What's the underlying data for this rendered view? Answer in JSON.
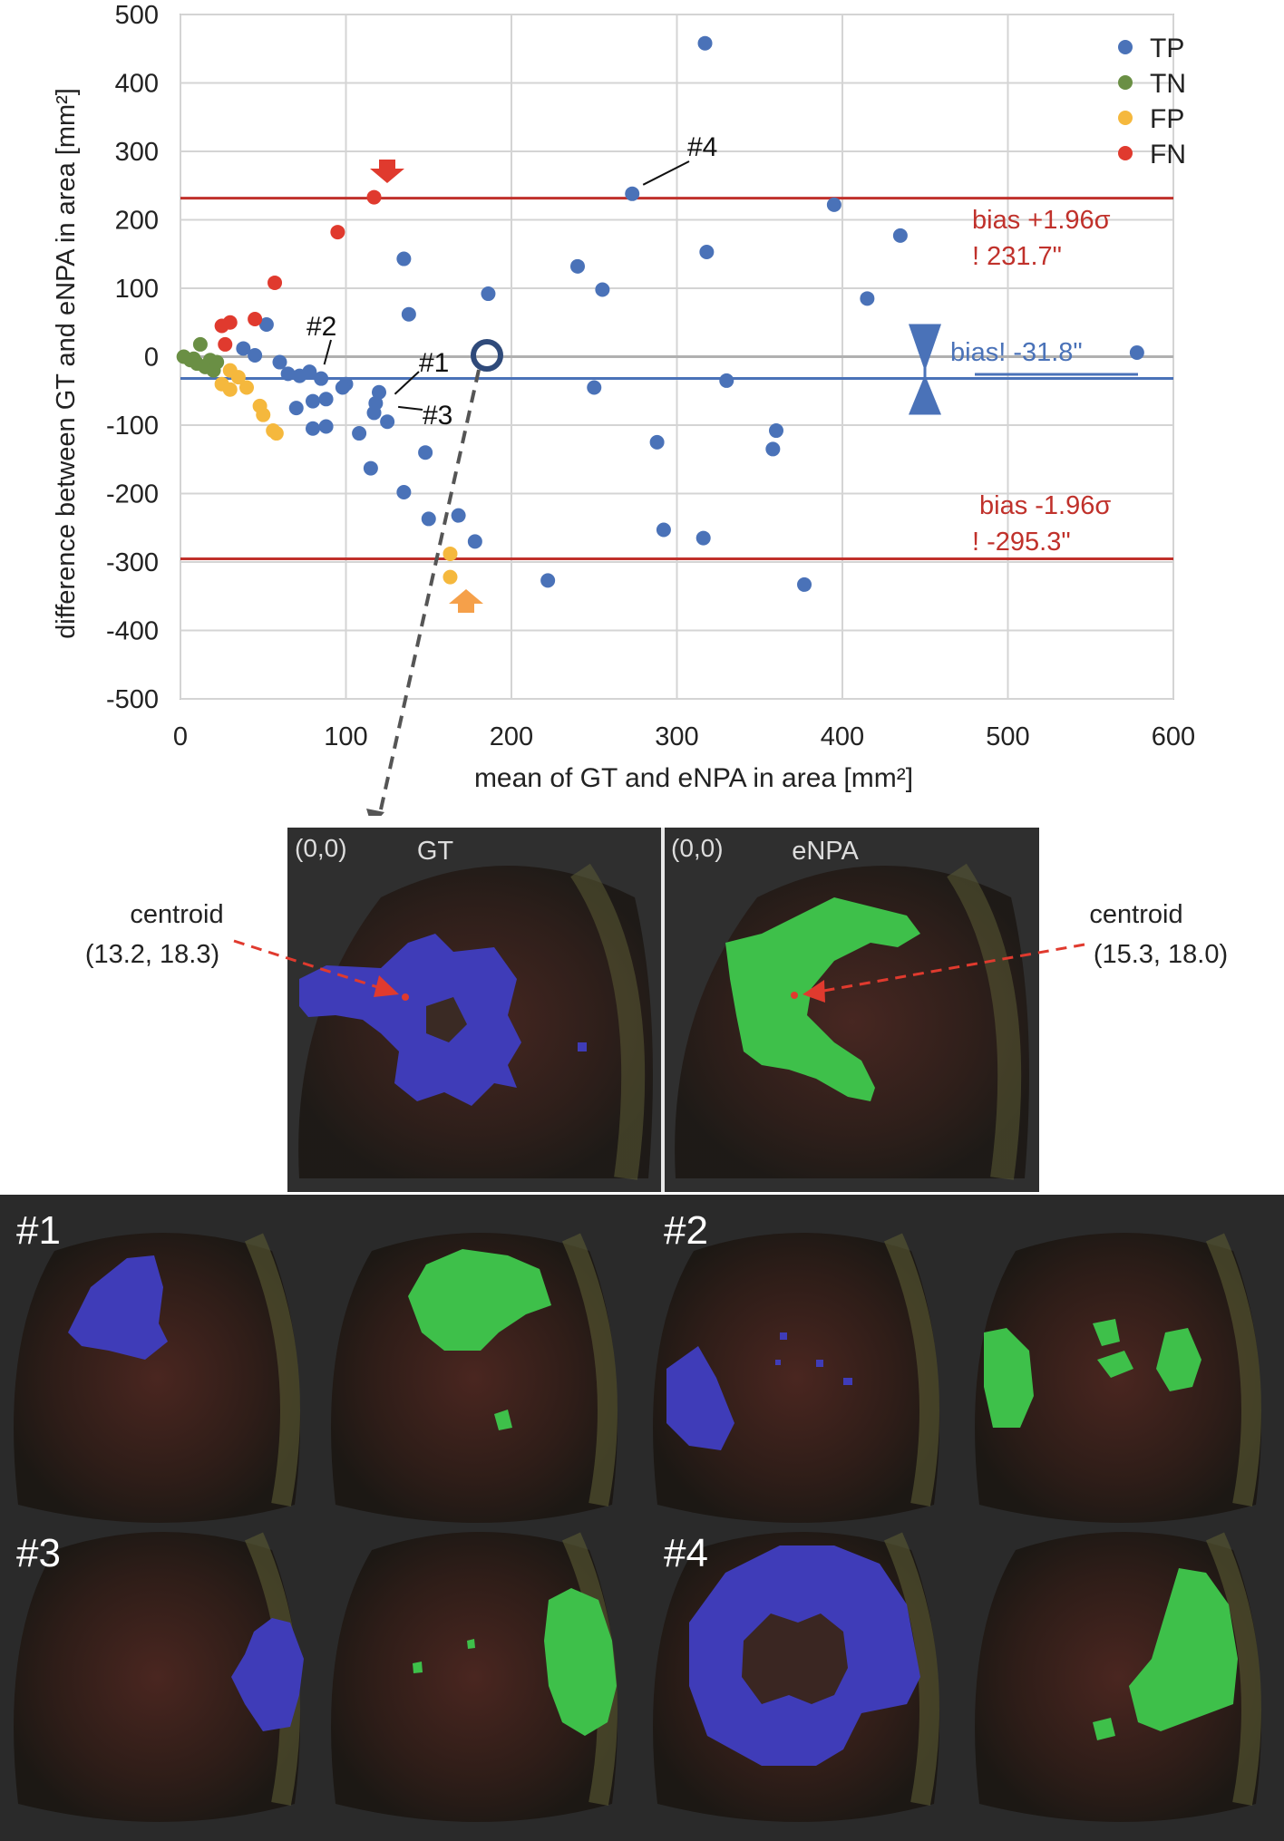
{
  "chart_data": {
    "type": "scatter",
    "title": "",
    "xlabel": "mean of GT and eNPA in area [mm²]",
    "ylabel": "difference between GT and eNPA in area [mm²]",
    "xlim": [
      0,
      600
    ],
    "ylim": [
      -500,
      500
    ],
    "xticks": [
      0,
      100,
      200,
      300,
      400,
      500,
      600
    ],
    "yticks": [
      500,
      400,
      300,
      200,
      100,
      0,
      -100,
      -200,
      -300,
      -400,
      -500
    ],
    "grid": true,
    "legend_position": "top-right",
    "series": [
      {
        "name": "TP",
        "color": "#4a72b8",
        "points": [
          [
            317,
            458
          ],
          [
            273,
            238
          ],
          [
            395,
            222
          ],
          [
            435,
            177
          ],
          [
            318,
            153
          ],
          [
            135,
            143
          ],
          [
            240,
            132
          ],
          [
            255,
            98
          ],
          [
            186,
            92
          ],
          [
            415,
            85
          ],
          [
            138,
            62
          ],
          [
            52,
            47
          ],
          [
            38,
            12
          ],
          [
            45,
            2
          ],
          [
            578,
            6
          ],
          [
            60,
            -8
          ],
          [
            65,
            -25
          ],
          [
            72,
            -28
          ],
          [
            78,
            -22
          ],
          [
            85,
            -32
          ],
          [
            100,
            -40
          ],
          [
            98,
            -45
          ],
          [
            120,
            -52
          ],
          [
            88,
            -62
          ],
          [
            80,
            -65
          ],
          [
            118,
            -68
          ],
          [
            70,
            -75
          ],
          [
            117,
            -82
          ],
          [
            125,
            -95
          ],
          [
            88,
            -102
          ],
          [
            80,
            -105
          ],
          [
            108,
            -112
          ],
          [
            250,
            -45
          ],
          [
            330,
            -35
          ],
          [
            360,
            -108
          ],
          [
            358,
            -135
          ],
          [
            288,
            -125
          ],
          [
            148,
            -140
          ],
          [
            115,
            -163
          ],
          [
            135,
            -198
          ],
          [
            150,
            -237
          ],
          [
            168,
            -232
          ],
          [
            178,
            -270
          ],
          [
            292,
            -253
          ],
          [
            316,
            -265
          ],
          [
            222,
            -327
          ],
          [
            377,
            -333
          ]
        ]
      },
      {
        "name": "TN",
        "color": "#6a8f44",
        "points": [
          [
            2,
            0
          ],
          [
            6,
            -5
          ],
          [
            10,
            -10
          ],
          [
            12,
            18
          ],
          [
            15,
            -15
          ],
          [
            18,
            -5
          ],
          [
            20,
            -20
          ],
          [
            22,
            -8
          ],
          [
            8,
            -3
          ]
        ]
      },
      {
        "name": "FP",
        "color": "#f5b83d",
        "points": [
          [
            25,
            -40
          ],
          [
            30,
            -48
          ],
          [
            35,
            -30
          ],
          [
            40,
            -45
          ],
          [
            30,
            -20
          ],
          [
            48,
            -72
          ],
          [
            50,
            -85
          ],
          [
            56,
            -108
          ],
          [
            58,
            -112
          ],
          [
            163,
            -288
          ],
          [
            163,
            -322
          ]
        ]
      },
      {
        "name": "FN",
        "color": "#e03a2e",
        "points": [
          [
            117,
            233
          ],
          [
            95,
            182
          ],
          [
            57,
            108
          ],
          [
            45,
            55
          ],
          [
            30,
            50
          ],
          [
            25,
            45
          ],
          [
            27,
            18
          ]
        ]
      }
    ],
    "reference_lines": [
      {
        "name": "upper-loa",
        "y": 231.7,
        "color": "#c0312b",
        "label": "bias +1.96σ",
        "value_text": "!  231.7\""
      },
      {
        "name": "lower-loa",
        "y": -295.3,
        "color": "#c0312b",
        "label": "bias -1.96σ",
        "value_text": "!  -295.3\""
      },
      {
        "name": "bias",
        "y": -31.8,
        "color": "#4a72b8",
        "label": "bias!  -31.8\""
      }
    ],
    "annotations": [
      {
        "text": "#1",
        "at": [
          123,
          -52
        ]
      },
      {
        "text": "#2",
        "at": [
          88,
          -30
        ]
      },
      {
        "text": "#3",
        "at": [
          125,
          -68
        ]
      },
      {
        "text": "#4",
        "at": [
          273,
          238
        ]
      }
    ]
  },
  "detail": {
    "gt_title": "GT",
    "enpa_title": "eNPA",
    "origin_label": "(0,0)",
    "gt_centroid_label": "centroid",
    "gt_centroid_value": "(13.2, 18.3)",
    "enpa_centroid_label": "centroid",
    "enpa_centroid_value": "(15.3, 18.0)"
  },
  "cases": [
    {
      "label": "#1"
    },
    {
      "label": "#2"
    },
    {
      "label": "#3"
    },
    {
      "label": "#4"
    }
  ],
  "colors": {
    "gt_region": "#3f3cb8",
    "enpa_region": "#3ec04a",
    "loa_line": "#c0312b",
    "bias_line": "#4a72b8",
    "panel_bg": "#2e2e2e"
  }
}
